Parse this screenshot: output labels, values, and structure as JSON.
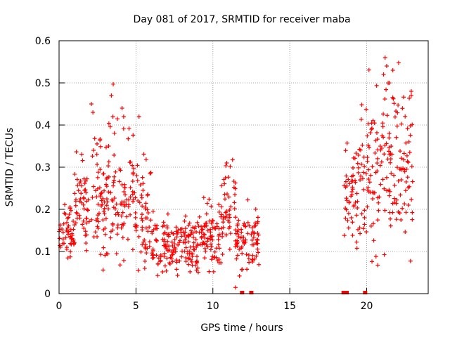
{
  "chart_data": {
    "type": "scatter",
    "title": "Day 081 of 2017, SRMTID for receiver maba",
    "xlabel": "GPS time / hours",
    "ylabel": "SRMTID / TECUs",
    "xlim": [
      0,
      24
    ],
    "ylim": [
      0,
      0.6
    ],
    "grid": true,
    "marker": "plus",
    "color": "#ff0000",
    "x_ticks": [
      0,
      5,
      10,
      15,
      20
    ],
    "x_tick_labels": [
      "0",
      "5",
      "10",
      "15",
      "20"
    ],
    "y_ticks": [
      0,
      0.1,
      0.2,
      0.3,
      0.4,
      0.5,
      0.6
    ],
    "y_tick_labels": [
      "0",
      "0.1",
      "0.2",
      "0.3",
      "0.4",
      "0.5",
      "0.6"
    ],
    "series": [
      {
        "name": "SRMTID",
        "generated_envelope": [
          {
            "x_start": 0.0,
            "x_end": 1.0,
            "y_base": 0.11,
            "y_spread": 0.12
          },
          {
            "x_start": 1.0,
            "x_end": 2.0,
            "y_base": 0.16,
            "y_spread": 0.18
          },
          {
            "x_start": 2.0,
            "x_end": 3.0,
            "y_base": 0.14,
            "y_spread": 0.25
          },
          {
            "x_start": 3.0,
            "x_end": 4.0,
            "y_base": 0.16,
            "y_spread": 0.28
          },
          {
            "x_start": 4.0,
            "x_end": 5.0,
            "y_base": 0.14,
            "y_spread": 0.25
          },
          {
            "x_start": 5.0,
            "x_end": 6.0,
            "y_base": 0.12,
            "y_spread": 0.22
          },
          {
            "x_start": 6.0,
            "x_end": 9.0,
            "y_base": 0.08,
            "y_spread": 0.1
          },
          {
            "x_start": 9.0,
            "x_end": 10.5,
            "y_base": 0.09,
            "y_spread": 0.12
          },
          {
            "x_start": 10.5,
            "x_end": 11.5,
            "y_base": 0.12,
            "y_spread": 0.18
          },
          {
            "x_start": 11.5,
            "x_end": 13.0,
            "y_base": 0.1,
            "y_spread": 0.12
          },
          {
            "x_start": 18.5,
            "x_end": 19.5,
            "y_base": 0.17,
            "y_spread": 0.18
          },
          {
            "x_start": 19.5,
            "x_end": 20.5,
            "y_base": 0.2,
            "y_spread": 0.28
          },
          {
            "x_start": 20.5,
            "x_end": 21.5,
            "y_base": 0.22,
            "y_spread": 0.32
          },
          {
            "x_start": 21.5,
            "x_end": 22.5,
            "y_base": 0.22,
            "y_spread": 0.28
          },
          {
            "x_start": 22.5,
            "x_end": 23.0,
            "y_base": 0.18,
            "y_spread": 0.28
          }
        ],
        "peak_points": [
          {
            "x": 2.1,
            "y": 0.45
          },
          {
            "x": 2.2,
            "y": 0.43
          },
          {
            "x": 3.4,
            "y": 0.47
          },
          {
            "x": 3.5,
            "y": 0.42
          },
          {
            "x": 4.1,
            "y": 0.44
          },
          {
            "x": 4.2,
            "y": 0.42
          },
          {
            "x": 5.2,
            "y": 0.42
          },
          {
            "x": 10.9,
            "y": 0.31
          },
          {
            "x": 21.1,
            "y": 0.52
          },
          {
            "x": 21.2,
            "y": 0.56
          },
          {
            "x": 21.3,
            "y": 0.54
          },
          {
            "x": 21.7,
            "y": 0.53
          },
          {
            "x": 22.9,
            "y": 0.48
          },
          {
            "x": 22.9,
            "y": 0.47
          }
        ]
      }
    ],
    "zero_markers_x": [
      11.9,
      12.5,
      18.5,
      18.7,
      19.9
    ]
  }
}
